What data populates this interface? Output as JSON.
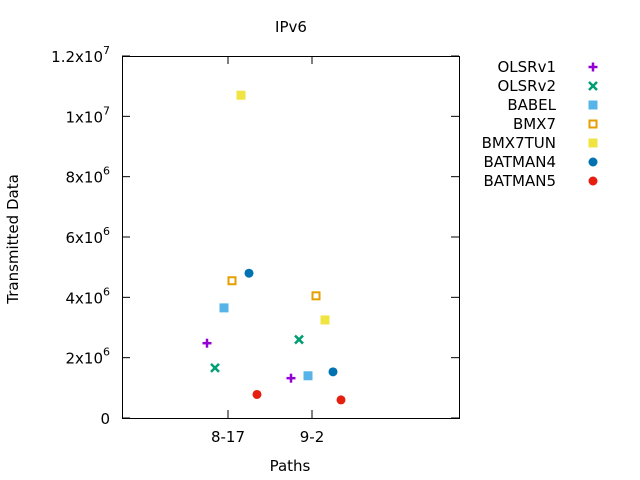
{
  "chart_data": {
    "type": "scatter",
    "title": "IPv6",
    "xlabel": "Paths",
    "ylabel": "Transmitted Data",
    "categories": [
      "8-17",
      "9-2"
    ],
    "ylim": [
      0,
      12000000
    ],
    "yticks": [
      {
        "value": 0,
        "base": "0",
        "exp": ""
      },
      {
        "value": 2000000,
        "base": "2x10",
        "exp": "6"
      },
      {
        "value": 4000000,
        "base": "4x10",
        "exp": "6"
      },
      {
        "value": 6000000,
        "base": "6x10",
        "exp": "6"
      },
      {
        "value": 8000000,
        "base": "8x10",
        "exp": "6"
      },
      {
        "value": 10000000,
        "base": "1x10",
        "exp": "7"
      },
      {
        "value": 12000000,
        "base": "1.2x10",
        "exp": "7"
      }
    ],
    "grid": false,
    "legend_position": "outside-right",
    "series": [
      {
        "name": "OLSRv1",
        "color": "#9400d3",
        "marker": "plus",
        "values": [
          2480000,
          1320000
        ]
      },
      {
        "name": "OLSRv2",
        "color": "#009e73",
        "marker": "cross",
        "values": [
          1660000,
          2600000
        ]
      },
      {
        "name": "BABEL",
        "color": "#56b4e9",
        "marker": "square-filled",
        "values": [
          3650000,
          1400000
        ]
      },
      {
        "name": "BMX7",
        "color": "#e69f00",
        "marker": "square-open",
        "values": [
          4550000,
          4050000
        ]
      },
      {
        "name": "BMX7TUN",
        "color": "#f0e442",
        "marker": "square-filled",
        "values": [
          10700000,
          3250000
        ]
      },
      {
        "name": "BATMAN4",
        "color": "#0072b2",
        "marker": "circle-filled",
        "values": [
          4800000,
          1530000
        ]
      },
      {
        "name": "BATMAN5",
        "color": "#e51e10",
        "marker": "circle-filled",
        "values": [
          780000,
          600000
        ]
      }
    ]
  }
}
